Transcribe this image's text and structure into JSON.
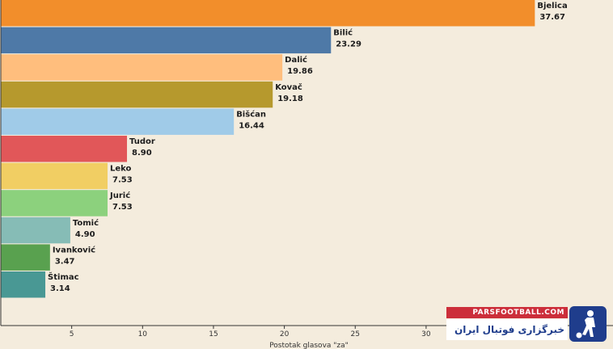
{
  "chart_data": {
    "type": "bar",
    "orientation": "horizontal",
    "title": "",
    "xlabel": "Postotak glasova \"za\"",
    "ylabel": "",
    "xlim": [
      0,
      38
    ],
    "xticks": [
      5,
      10,
      15,
      20,
      25,
      30
    ],
    "categories": [
      "Bjelica",
      "Bilić",
      "Dalić",
      "Kovač",
      "Bišćan",
      "Tudor",
      "Leko",
      "Jurić",
      "Tomić",
      "Ivanković",
      "Štimac"
    ],
    "values": [
      37.67,
      23.29,
      19.86,
      19.18,
      16.44,
      8.9,
      7.53,
      7.53,
      4.9,
      3.47,
      3.14
    ],
    "value_labels": [
      "37.67",
      "23.29",
      "19.86",
      "19.18",
      "16.44",
      "8.90",
      "7.53",
      "7.53",
      "4.90",
      "3.47",
      "3.14"
    ],
    "colors": [
      "#f28e2b",
      "#4e79a7",
      "#ffbe7d",
      "#b6992d",
      "#a0cbe8",
      "#e15759",
      "#f1ce63",
      "#8cd17d",
      "#86bcb6",
      "#59a14f",
      "#499894"
    ]
  },
  "watermark": {
    "top": "PARSFOOTBALL.COM",
    "bottom": "خبرگزاری فوتبال ایران",
    "icon": "footballer-logo-icon"
  }
}
